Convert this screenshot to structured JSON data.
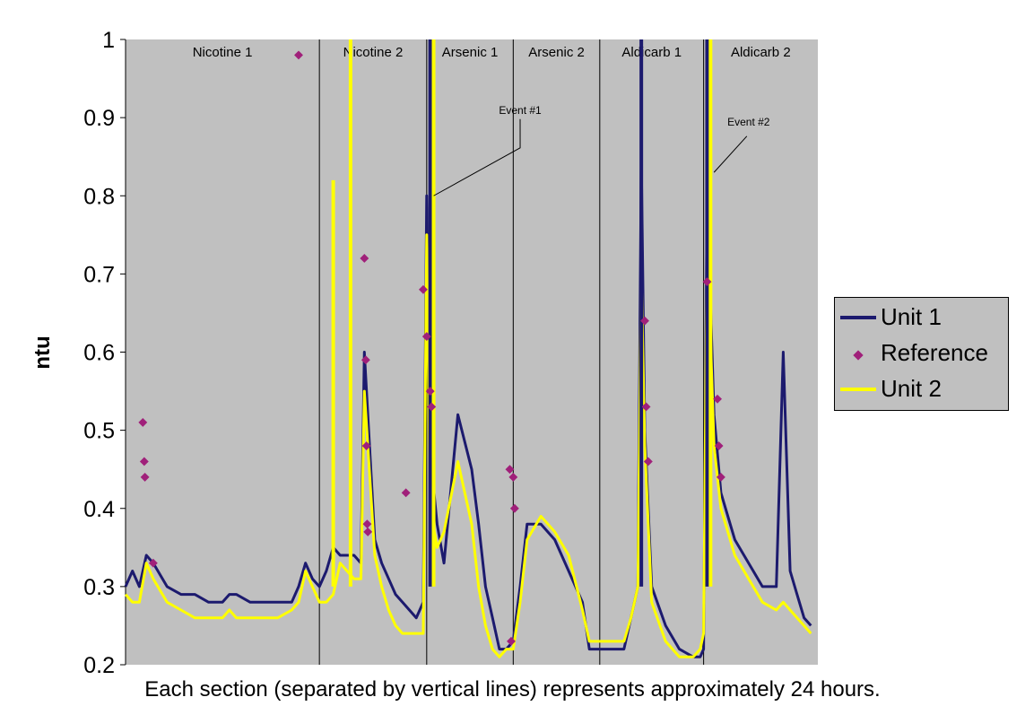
{
  "chart_data": {
    "type": "line",
    "ylabel": "ntu",
    "ylim": [
      0.2,
      1.0
    ],
    "yticks": [
      "0.2",
      "0.3",
      "0.4",
      "0.5",
      "0.6",
      "0.7",
      "0.8",
      "0.9",
      "1"
    ],
    "grid": false,
    "legend_placement": "right",
    "plot_bg": "#c0c0c0",
    "sections": [
      "Nicotine 1",
      "Nicotine 2",
      "Arsenic 1",
      "Arsenic 2",
      "Aldicarb 1",
      "Aldicarb 2"
    ],
    "section_bounds": [
      0,
      2.8,
      4.35,
      5.6,
      6.85,
      8.35,
      10.0
    ],
    "x": [
      0,
      0.1,
      0.2,
      0.3,
      0.4,
      0.6,
      0.8,
      1.0,
      1.2,
      1.4,
      1.5,
      1.6,
      1.8,
      2.0,
      2.2,
      2.4,
      2.5,
      2.6,
      2.7,
      2.8,
      2.9,
      3.0,
      3.1,
      3.2,
      3.3,
      3.4,
      3.45,
      3.6,
      3.7,
      3.8,
      3.9,
      4.0,
      4.1,
      4.2,
      4.3,
      4.35,
      4.4,
      4.5,
      4.6,
      4.8,
      5.0,
      5.1,
      5.2,
      5.3,
      5.4,
      5.5,
      5.6,
      5.7,
      5.8,
      6.0,
      6.2,
      6.4,
      6.6,
      6.7,
      6.85,
      6.9,
      7.0,
      7.2,
      7.3,
      7.4,
      7.45,
      7.5,
      7.6,
      7.8,
      8.0,
      8.2,
      8.3,
      8.35,
      8.4,
      8.5,
      8.6,
      8.8,
      9.0,
      9.2,
      9.4,
      9.5,
      9.6,
      9.7,
      9.8,
      9.9
    ],
    "series": [
      {
        "name": "Unit 1",
        "color": "#1c1a6e",
        "values": [
          0.3,
          0.32,
          0.3,
          0.34,
          0.33,
          0.3,
          0.29,
          0.29,
          0.28,
          0.28,
          0.29,
          0.29,
          0.28,
          0.28,
          0.28,
          0.28,
          0.3,
          0.33,
          0.31,
          0.3,
          0.32,
          0.35,
          0.34,
          0.34,
          0.34,
          0.33,
          0.6,
          0.36,
          0.33,
          0.31,
          0.29,
          0.28,
          0.27,
          0.26,
          0.28,
          0.8,
          0.47,
          0.38,
          0.33,
          0.52,
          0.45,
          0.38,
          0.3,
          0.26,
          0.22,
          0.22,
          0.23,
          0.3,
          0.38,
          0.38,
          0.36,
          0.32,
          0.28,
          0.22,
          0.22,
          0.22,
          0.22,
          0.22,
          0.26,
          0.3,
          0.85,
          0.5,
          0.3,
          0.25,
          0.22,
          0.21,
          0.21,
          0.22,
          0.8,
          0.52,
          0.42,
          0.36,
          0.33,
          0.3,
          0.3,
          0.6,
          0.32,
          0.29,
          0.26,
          0.25
        ]
      },
      {
        "name": "Unit 2",
        "color": "#ffff00",
        "values": [
          0.29,
          0.28,
          0.28,
          0.33,
          0.31,
          0.28,
          0.27,
          0.26,
          0.26,
          0.26,
          0.27,
          0.26,
          0.26,
          0.26,
          0.26,
          0.27,
          0.28,
          0.32,
          0.3,
          0.28,
          0.28,
          0.29,
          0.33,
          0.32,
          0.31,
          0.31,
          0.55,
          0.34,
          0.3,
          0.27,
          0.25,
          0.24,
          0.24,
          0.24,
          0.24,
          0.75,
          0.4,
          0.35,
          0.37,
          0.46,
          0.38,
          0.3,
          0.25,
          0.22,
          0.21,
          0.22,
          0.22,
          0.28,
          0.36,
          0.39,
          0.37,
          0.34,
          0.27,
          0.23,
          0.23,
          0.23,
          0.23,
          0.23,
          0.26,
          0.3,
          0.7,
          0.48,
          0.28,
          0.23,
          0.21,
          0.21,
          0.22,
          0.24,
          0.75,
          0.48,
          0.4,
          0.34,
          0.31,
          0.28,
          0.27,
          0.28,
          0.27,
          0.26,
          0.25,
          0.24
        ]
      },
      {
        "name": "Reference",
        "color": "#a0207a",
        "type": "scatter",
        "x": [
          0.25,
          0.27,
          0.28,
          0.4,
          2.5,
          3.45,
          3.47,
          3.48,
          3.49,
          3.5,
          4.05,
          4.3,
          4.35,
          4.4,
          4.42,
          5.55,
          5.6,
          5.62,
          5.57,
          7.5,
          7.52,
          7.55,
          8.4,
          8.55,
          8.57,
          8.6
        ],
        "values": [
          0.51,
          0.46,
          0.44,
          0.33,
          0.98,
          0.72,
          0.59,
          0.48,
          0.38,
          0.37,
          0.42,
          0.68,
          0.62,
          0.55,
          0.53,
          0.45,
          0.44,
          0.4,
          0.23,
          0.64,
          0.53,
          0.46,
          0.69,
          0.54,
          0.48,
          0.44
        ]
      }
    ],
    "spikes": [
      {
        "series": "Unit 2",
        "x": 3.0,
        "value": 0.82
      },
      {
        "series": "Unit 2",
        "x": 3.25,
        "value": 1.0
      },
      {
        "series": "Unit 1",
        "x": 4.4,
        "value": 1.0
      },
      {
        "series": "Unit 2",
        "x": 4.45,
        "value": 1.0
      },
      {
        "series": "Unit 1",
        "x": 7.45,
        "value": 1.0
      },
      {
        "series": "Unit 1",
        "x": 8.4,
        "value": 1.0
      },
      {
        "series": "Unit 2",
        "x": 8.45,
        "value": 1.0
      }
    ],
    "annotations": [
      {
        "text": "Event #1",
        "x": 5.7,
        "y": 0.905
      },
      {
        "text": "Event #2",
        "x": 9.0,
        "y": 0.89
      }
    ]
  },
  "legend": {
    "items": [
      {
        "label": "Unit 1",
        "kind": "line",
        "color": "#1c1a6e"
      },
      {
        "label": "Reference",
        "kind": "marker",
        "color": "#a0207a"
      },
      {
        "label": "Unit 2",
        "kind": "line",
        "color": "#ffff00"
      }
    ]
  },
  "caption": "Each section (separated by vertical lines) represents approximately 24 hours."
}
